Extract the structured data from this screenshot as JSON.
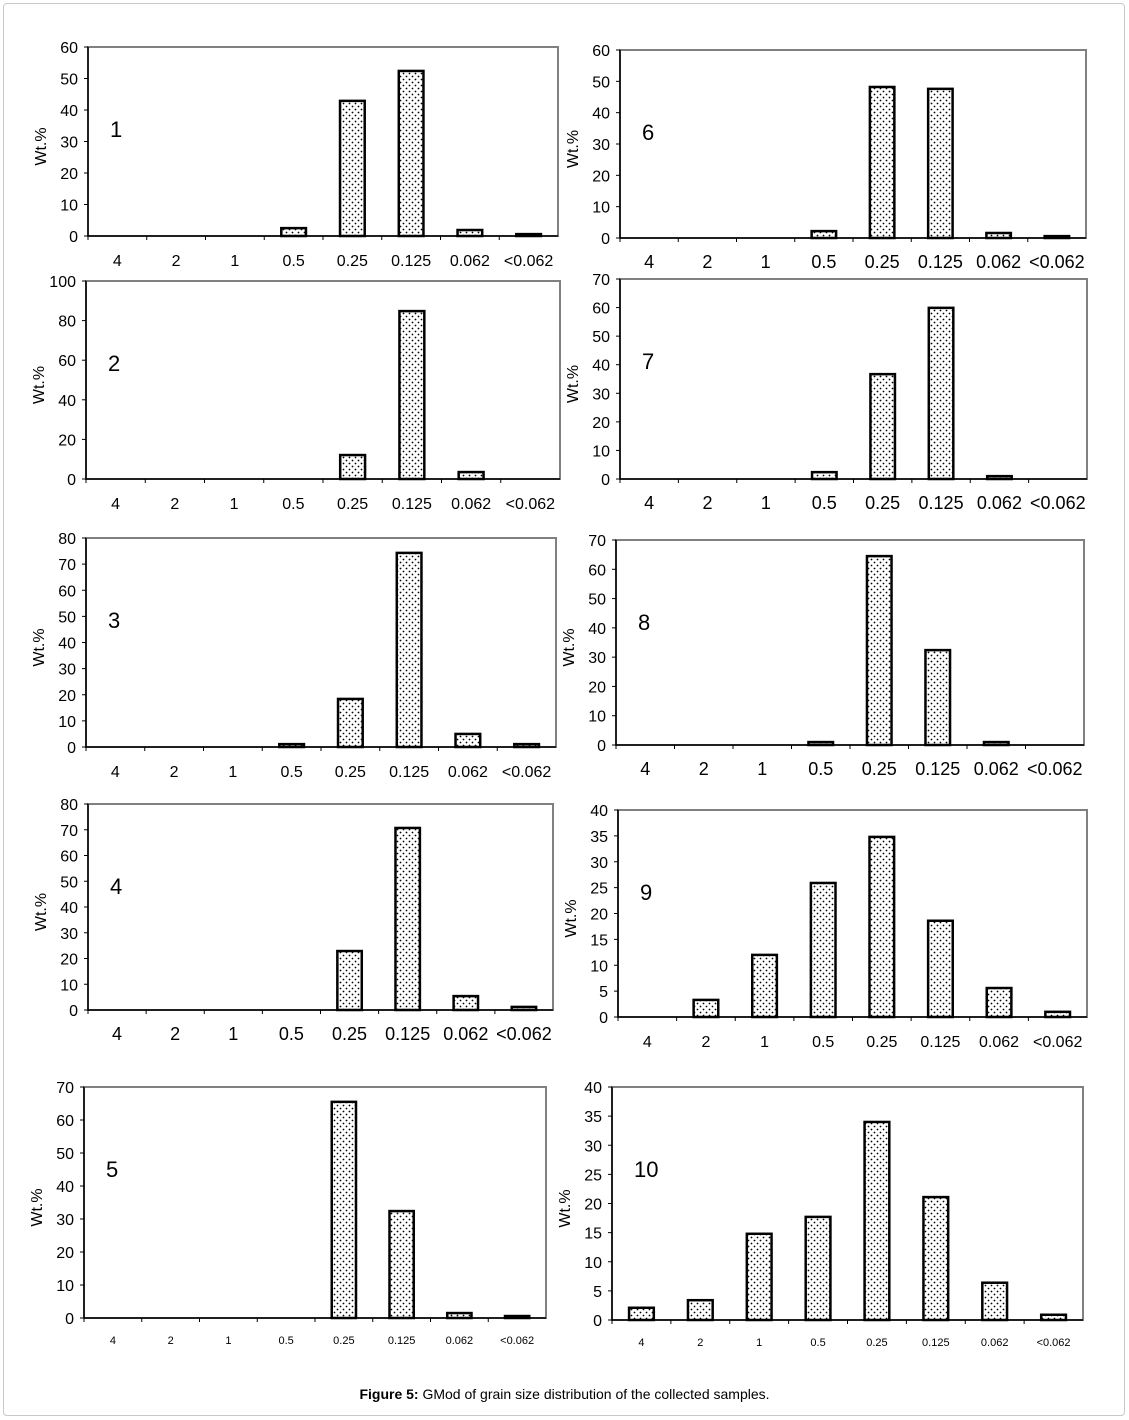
{
  "caption": {
    "label": "Figure 5:",
    "text": " GMod of grain size distribution of the collected samples."
  },
  "chart_data": [
    {
      "type": "bar",
      "sample": "1",
      "ylabel": "Wt.%",
      "ylim": [
        0,
        60
      ],
      "yticks": [
        0,
        10,
        20,
        30,
        40,
        50,
        60
      ],
      "categories": [
        "4",
        "2",
        "1",
        "0.5",
        "0.25",
        "0.125",
        "0.062",
        "<0.062"
      ],
      "values": [
        0,
        0,
        0,
        2.5,
        42.9,
        52.4,
        1.9,
        0.6
      ]
    },
    {
      "type": "bar",
      "sample": "2",
      "ylabel": "Wt.%",
      "ylim": [
        0,
        100
      ],
      "yticks": [
        0,
        20,
        40,
        60,
        80,
        100
      ],
      "categories": [
        "4",
        "2",
        "1",
        "0.5",
        "0.25",
        "0.125",
        "0.062",
        "<0.062"
      ],
      "values": [
        0,
        0,
        0,
        0,
        12.1,
        84.8,
        3.5,
        0
      ]
    },
    {
      "type": "bar",
      "sample": "3",
      "ylabel": "Wt.%",
      "ylim": [
        0,
        80
      ],
      "yticks": [
        0,
        10,
        20,
        30,
        40,
        50,
        60,
        70,
        80
      ],
      "categories": [
        "4",
        "2",
        "1",
        "0.5",
        "0.25",
        "0.125",
        "0.062",
        "<0.062"
      ],
      "values": [
        0,
        0,
        0,
        1.1,
        18.4,
        74.3,
        5.0,
        1.1
      ]
    },
    {
      "type": "bar",
      "sample": "4",
      "ylabel": "Wt.%",
      "ylim": [
        0,
        80
      ],
      "yticks": [
        0,
        10,
        20,
        30,
        40,
        50,
        60,
        70,
        80
      ],
      "categories": [
        "4",
        "2",
        "1",
        "0.5",
        "0.25",
        "0.125",
        "0.062",
        "<0.062"
      ],
      "values": [
        0,
        0,
        0,
        0,
        22.9,
        70.7,
        5.4,
        1.2
      ]
    },
    {
      "type": "bar",
      "sample": "5",
      "ylabel": "Wt.%",
      "ylim": [
        0,
        70
      ],
      "yticks": [
        0,
        10,
        20,
        30,
        40,
        50,
        60,
        70
      ],
      "categories": [
        "4",
        "2",
        "1",
        "0.5",
        "0.25",
        "0.125",
        "0.062",
        "<0.062"
      ],
      "values": [
        0,
        0,
        0,
        0,
        65.5,
        32.4,
        1.5,
        0.6
      ]
    },
    {
      "type": "bar",
      "sample": "6",
      "ylabel": "Wt.%",
      "ylim": [
        0,
        60
      ],
      "yticks": [
        0,
        10,
        20,
        30,
        40,
        50,
        60
      ],
      "categories": [
        "4",
        "2",
        "1",
        "0.5",
        "0.25",
        "0.125",
        "0.062",
        "<0.062"
      ],
      "values": [
        0,
        0,
        0,
        2.2,
        48.2,
        47.6,
        1.6,
        0.6
      ]
    },
    {
      "type": "bar",
      "sample": "7",
      "ylabel": "Wt.%",
      "ylim": [
        0,
        70
      ],
      "yticks": [
        0,
        10,
        20,
        30,
        40,
        50,
        60,
        70
      ],
      "categories": [
        "4",
        "2",
        "1",
        "0.5",
        "0.25",
        "0.125",
        "0.062",
        "<0.062"
      ],
      "values": [
        0,
        0,
        0,
        2.4,
        36.7,
        59.9,
        1.0,
        0
      ]
    },
    {
      "type": "bar",
      "sample": "8",
      "ylabel": "Wt.%",
      "ylim": [
        0,
        70
      ],
      "yticks": [
        0,
        10,
        20,
        30,
        40,
        50,
        60,
        70
      ],
      "categories": [
        "4",
        "2",
        "1",
        "0.5",
        "0.25",
        "0.125",
        "0.062",
        "<0.062"
      ],
      "values": [
        0,
        0,
        0,
        1.0,
        64.5,
        32.4,
        1.0,
        0
      ]
    },
    {
      "type": "bar",
      "sample": "9",
      "ylabel": "Wt.%",
      "ylim": [
        0,
        40
      ],
      "yticks": [
        0,
        5,
        10,
        15,
        20,
        25,
        30,
        35,
        40
      ],
      "categories": [
        "4",
        "2",
        "1",
        "0.5",
        "0.25",
        "0.125",
        "0.062",
        "<0.062"
      ],
      "values": [
        0,
        3.3,
        12.0,
        25.9,
        34.8,
        18.6,
        5.6,
        1.0
      ]
    },
    {
      "type": "bar",
      "sample": "10",
      "ylabel": "Wt.%",
      "ylim": [
        0,
        40
      ],
      "yticks": [
        0,
        5,
        10,
        15,
        20,
        25,
        30,
        35,
        40
      ],
      "categories": [
        "4",
        "2",
        "1",
        "0.5",
        "0.25",
        "0.125",
        "0.062",
        "<0.062"
      ],
      "values": [
        2.1,
        3.4,
        14.8,
        17.7,
        34.0,
        21.1,
        6.4,
        0.9
      ]
    }
  ],
  "colors": {
    "bar_fill": "#ffffff",
    "bar_dots": "#000000",
    "axis": "#000000",
    "frame": "#808080"
  }
}
